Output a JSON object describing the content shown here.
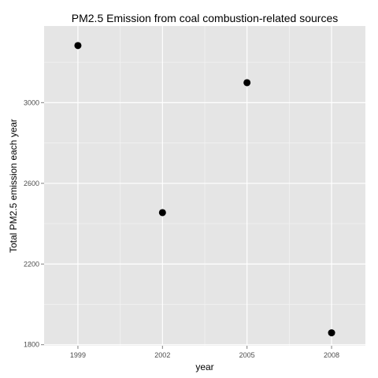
{
  "chart_data": {
    "type": "scatter",
    "title": "PM2.5 Emission from coal combustion-related sources",
    "xlabel": "year",
    "ylabel": "Total PM2.5 emission each year",
    "x": [
      1999,
      2002,
      2005,
      2008
    ],
    "y": [
      3283,
      2455,
      3099,
      1859
    ],
    "x_ticks": [
      1999,
      2002,
      2005,
      2008
    ],
    "y_ticks": [
      1800,
      2200,
      2600,
      3000
    ],
    "xlim": [
      1997.8,
      2009.2
    ],
    "ylim": [
      1795,
      3380
    ],
    "grid": true,
    "legend": "none",
    "colors": {
      "panel_background": "#e5e5e5",
      "grid_major": "#ffffff",
      "grid_minor": "#f2f2f2",
      "point": "#000000",
      "tick_text": "#4d4d4d"
    }
  }
}
